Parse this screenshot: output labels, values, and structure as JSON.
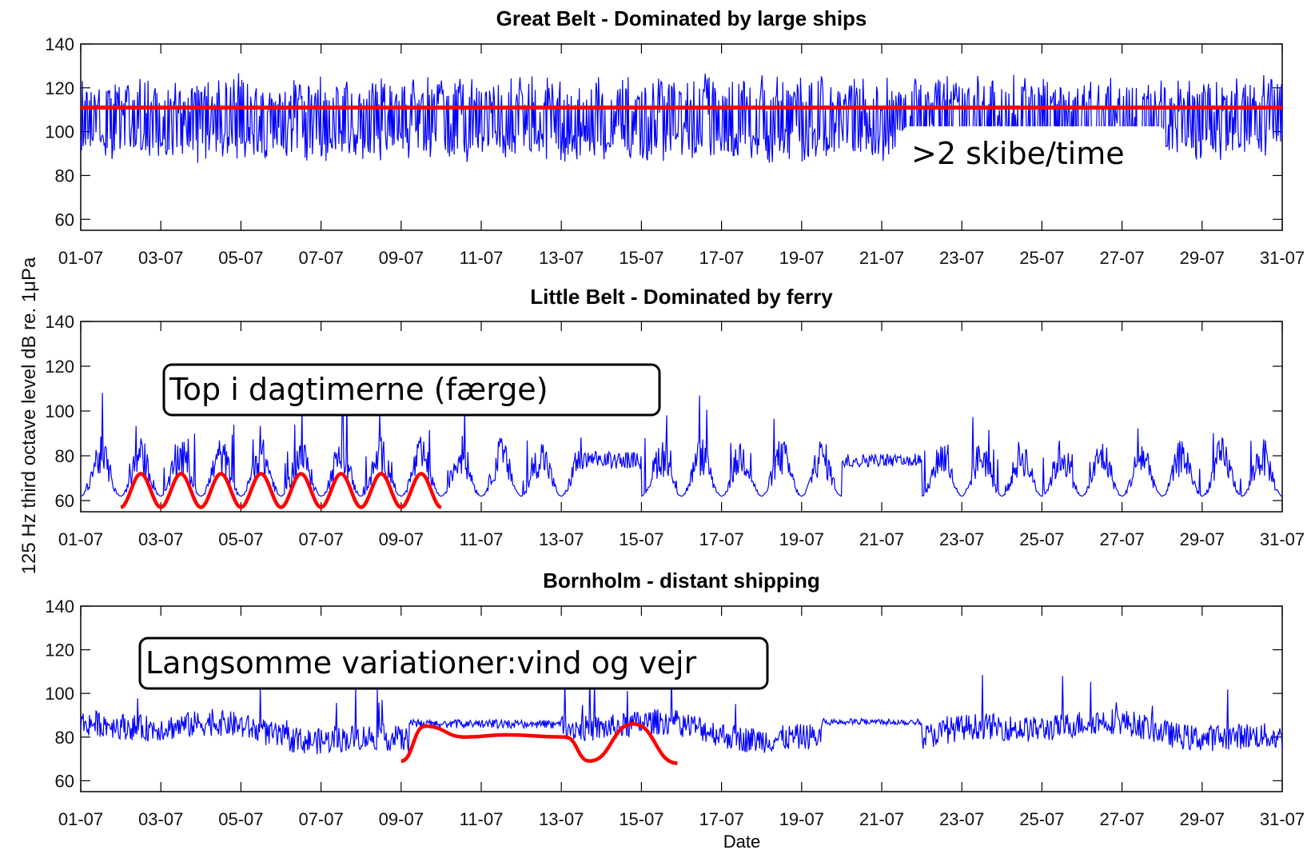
{
  "chart_data": [
    {
      "type": "line",
      "title": "Great Belt - Dominated by large ships",
      "x_ticks": [
        "01-07",
        "03-07",
        "05-07",
        "07-07",
        "09-07",
        "11-07",
        "13-07",
        "15-07",
        "17-07",
        "19-07",
        "21-07",
        "23-07",
        "25-07",
        "27-07",
        "29-07",
        "31-07"
      ],
      "y_ticks": [
        "60",
        "80",
        "100",
        "120",
        "140"
      ],
      "ylim": [
        55,
        140
      ],
      "x_range_days": [
        1,
        31
      ],
      "series": [
        {
          "color": "#0000ff",
          "baseline": 105,
          "spread_low": 12,
          "spread_high": 14,
          "noise": 8
        }
      ],
      "threshold": {
        "value": 111,
        "color": "#ff0000"
      },
      "annotation": {
        "text": ">2 skibe/time",
        "boxed": false
      }
    },
    {
      "type": "line",
      "title": "Little Belt - Dominated by ferry",
      "x_ticks": [
        "01-07",
        "03-07",
        "05-07",
        "07-07",
        "09-07",
        "11-07",
        "13-07",
        "15-07",
        "17-07",
        "19-07",
        "21-07",
        "23-07",
        "25-07",
        "27-07",
        "29-07",
        "31-07"
      ],
      "y_ticks": [
        "60",
        "80",
        "100",
        "120",
        "140"
      ],
      "ylim": [
        55,
        140
      ],
      "x_range_days": [
        1,
        31
      ],
      "series": [
        {
          "color": "#0000ff",
          "baseline": 68,
          "daily_peak": 85,
          "noise": 6
        }
      ],
      "overlay": {
        "description": "daily cycle",
        "color": "#ff0000",
        "days": [
          2,
          10
        ],
        "low": 57,
        "high": 72
      },
      "annotation": {
        "text": "Top i dagtimerne (færge)",
        "boxed": true
      }
    },
    {
      "type": "line",
      "title": "Bornholm - distant shipping",
      "x_ticks": [
        "01-07",
        "03-07",
        "05-07",
        "07-07",
        "09-07",
        "11-07",
        "13-07",
        "15-07",
        "17-07",
        "19-07",
        "21-07",
        "23-07",
        "25-07",
        "27-07",
        "29-07",
        "31-07"
      ],
      "y_ticks": [
        "60",
        "80",
        "100",
        "120",
        "140"
      ],
      "ylim": [
        55,
        140
      ],
      "x_range_days": [
        1,
        31
      ],
      "series": [
        {
          "color": "#0000ff",
          "baseline": 82,
          "noise": 5
        }
      ],
      "overlay": {
        "color": "#ff0000",
        "points": [
          [
            9,
            69
          ],
          [
            9.6,
            85
          ],
          [
            10.6,
            80
          ],
          [
            11.6,
            81
          ],
          [
            13.1,
            80
          ],
          [
            13.7,
            69
          ],
          [
            14.8,
            86
          ],
          [
            15.9,
            68
          ]
        ]
      },
      "annotation": {
        "text": "Langsomme variationer:vind og vejr",
        "boxed": true
      }
    }
  ],
  "shared": {
    "ylabel": "125 Hz third octave level dB re. 1μPa",
    "xlabel": "Date"
  }
}
